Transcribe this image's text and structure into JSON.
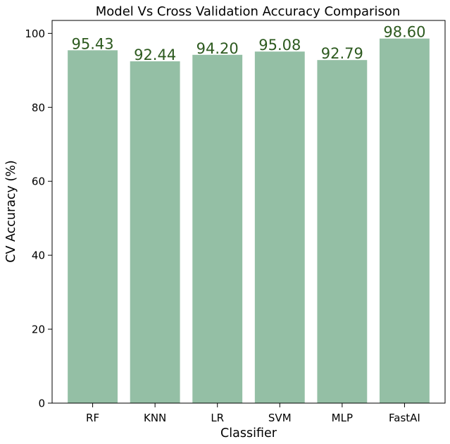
{
  "chart_data": {
    "type": "bar",
    "title": "Model Vs Cross Validation Accuracy Comparison",
    "xlabel": "Classifier",
    "ylabel": "CV Accuracy (%)",
    "categories": [
      "RF",
      "KNN",
      "LR",
      "SVM",
      "MLP",
      "FastAI"
    ],
    "values": [
      95.43,
      92.44,
      94.2,
      95.08,
      92.79,
      98.6
    ],
    "data_labels": [
      "95.43",
      "92.44",
      "94.20",
      "95.08",
      "92.79",
      "98.60"
    ],
    "ylim": [
      0,
      103.5
    ],
    "yticks": [
      0,
      20,
      40,
      60,
      80,
      100
    ],
    "grid": false,
    "legend": "none",
    "colors": {
      "bar": "#94bfa5",
      "data_label": "#2d5a1f",
      "axis": "#000000"
    }
  }
}
